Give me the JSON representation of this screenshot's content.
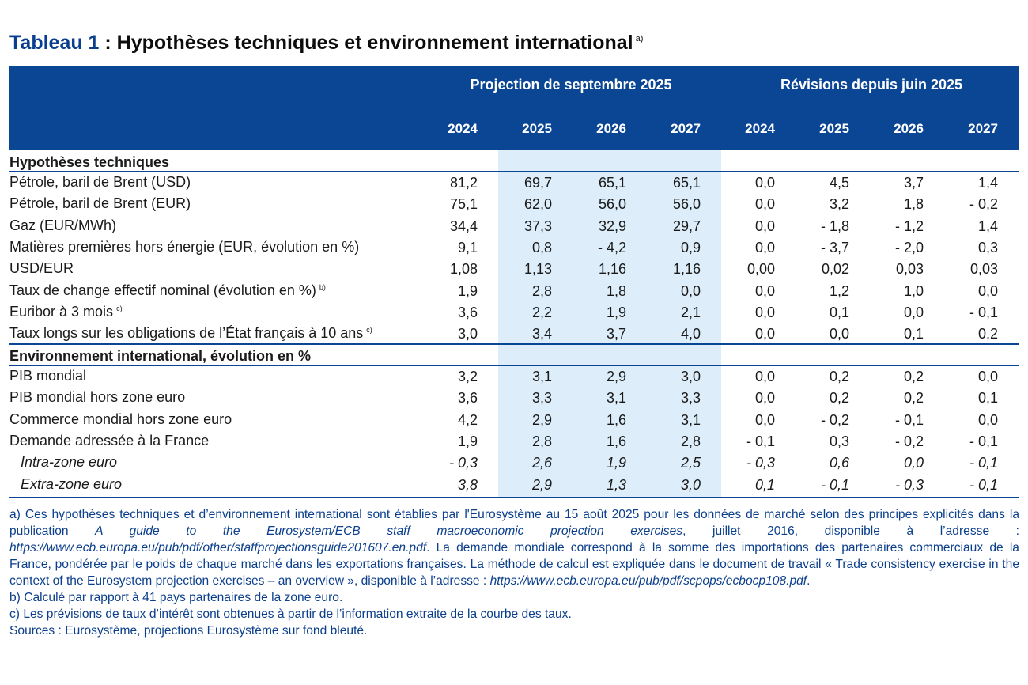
{
  "title": {
    "lead": "Tableau 1",
    "rest": " : Hypothèses techniques et environnement international",
    "note": "a)"
  },
  "header": {
    "group1": "Projection de septembre 2025",
    "group2": "Révisions depuis juin 2025",
    "years": [
      "2024",
      "2025",
      "2026",
      "2027",
      "2024",
      "2025",
      "2026",
      "2027"
    ]
  },
  "sections": [
    {
      "title": "Hypothèses techniques"
    },
    {
      "title": "Environnement international, évolution en %"
    }
  ],
  "rows": [
    {
      "label": "Pétrole, baril de Brent (USD)",
      "note": "",
      "values": [
        "81,2",
        "69,7",
        "65,1",
        "65,1",
        "0,0",
        "4,5",
        "3,7",
        "1,4"
      ]
    },
    {
      "label": "Pétrole, baril de Brent (EUR)",
      "note": "",
      "values": [
        "75,1",
        "62,0",
        "56,0",
        "56,0",
        "0,0",
        "3,2",
        "1,8",
        "- 0,2"
      ]
    },
    {
      "label": "Gaz (EUR/MWh)",
      "note": "",
      "values": [
        "34,4",
        "37,3",
        "32,9",
        "29,7",
        "0,0",
        "- 1,8",
        "- 1,2",
        "1,4"
      ]
    },
    {
      "label": "Matières premières hors énergie (EUR, évolution en %)",
      "note": "",
      "values": [
        "9,1",
        "0,8",
        "- 4,2",
        "0,9",
        "0,0",
        "- 3,7",
        "- 2,0",
        "0,3"
      ]
    },
    {
      "label": "USD/EUR",
      "note": "",
      "values": [
        "1,08",
        "1,13",
        "1,16",
        "1,16",
        "0,00",
        "0,02",
        "0,03",
        "0,03"
      ]
    },
    {
      "label": "Taux de change effectif nominal (évolution en %)",
      "note": "b)",
      "values": [
        "1,9",
        "2,8",
        "1,8",
        "0,0",
        "0,0",
        "1,2",
        "1,0",
        "0,0"
      ]
    },
    {
      "label": "Euribor à 3 mois",
      "note": "c)",
      "values": [
        "3,6",
        "2,2",
        "1,9",
        "2,1",
        "0,0",
        "0,1",
        "0,0",
        "- 0,1"
      ]
    },
    {
      "label": "Taux longs sur les obligations de l’État français à 10 ans",
      "note": "c)",
      "values": [
        "3,0",
        "3,4",
        "3,7",
        "4,0",
        "0,0",
        "0,0",
        "0,1",
        "0,2"
      ]
    },
    {
      "label": "PIB mondial",
      "note": "",
      "values": [
        "3,2",
        "3,1",
        "2,9",
        "3,0",
        "0,0",
        "0,2",
        "0,2",
        "0,0"
      ]
    },
    {
      "label": "PIB mondial hors zone euro",
      "note": "",
      "values": [
        "3,6",
        "3,3",
        "3,1",
        "3,3",
        "0,0",
        "0,2",
        "0,2",
        "0,1"
      ]
    },
    {
      "label": "Commerce mondial hors zone euro",
      "note": "",
      "values": [
        "4,2",
        "2,9",
        "1,6",
        "3,1",
        "0,0",
        "- 0,2",
        "- 0,1",
        "0,0"
      ]
    },
    {
      "label": "Demande adressée à la France",
      "note": "",
      "values": [
        "1,9",
        "2,8",
        "1,6",
        "2,8",
        "- 0,1",
        "0,3",
        "- 0,2",
        "- 0,1"
      ]
    },
    {
      "label": "Intra-zone euro",
      "note": "",
      "values": [
        "- 0,3",
        "2,6",
        "1,9",
        "2,5",
        "- 0,3",
        "0,6",
        "0,0",
        "- 0,1"
      ]
    },
    {
      "label": "Extra-zone euro",
      "note": "",
      "values": [
        "3,8",
        "2,9",
        "1,3",
        "3,0",
        "0,1",
        "- 0,1",
        "- 0,3",
        "- 0,1"
      ]
    }
  ],
  "notes": {
    "a_1": "a)  Ces hypothèses techniques et d’environnement international sont établies par l'Eurosystème au 15 août 2025 pour les données de marché selon des principes explicités dans la publication ",
    "a_2": "A guide to the Eurosystem/ECB staff macroeconomic projection exercises",
    "a_3": ", juillet 2016, disponible à l’adresse : ",
    "a_4": "https://www.ecb.europa.eu/pub/pdf/other/staffprojectionsguide201607.en.pdf",
    "a_5": ". La demande mondiale correspond à la somme des importations des partenaires commerciaux de la France, pondérée par le poids de chaque marché dans les exportations françaises. La méthode de calcul est expliquée dans le document de travail « Trade consistency exercise in the context of the Eurosystem projection exercises – an overview », disponible à l’adresse : ",
    "a_6": "https://www.ecb.europa.eu/pub/pdf/scpops/ecbocp108.pdf",
    "a_7": ".",
    "b": "b)  Calculé par rapport à 41 pays partenaires de la zone euro.",
    "c": "c)  Les prévisions de taux d’intérêt sont obtenues à partir de l’information extraite de la courbe des taux.",
    "sources": "Sources : Eurosystème, projections Eurosystème sur fond bleuté."
  }
}
